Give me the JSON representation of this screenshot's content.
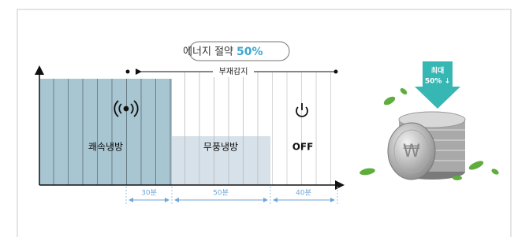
{
  "badge": {
    "label": "에너지 절약",
    "value": "50%"
  },
  "absence_label": "부재감지",
  "modes": [
    {
      "label": "쾌속냉방",
      "duration": "30분"
    },
    {
      "label": "무풍냉방",
      "duration": "50분"
    },
    {
      "label": "OFF",
      "duration": "40분"
    }
  ],
  "savings_arrow": {
    "line1": "최대",
    "line2": "50% ↓"
  }
}
